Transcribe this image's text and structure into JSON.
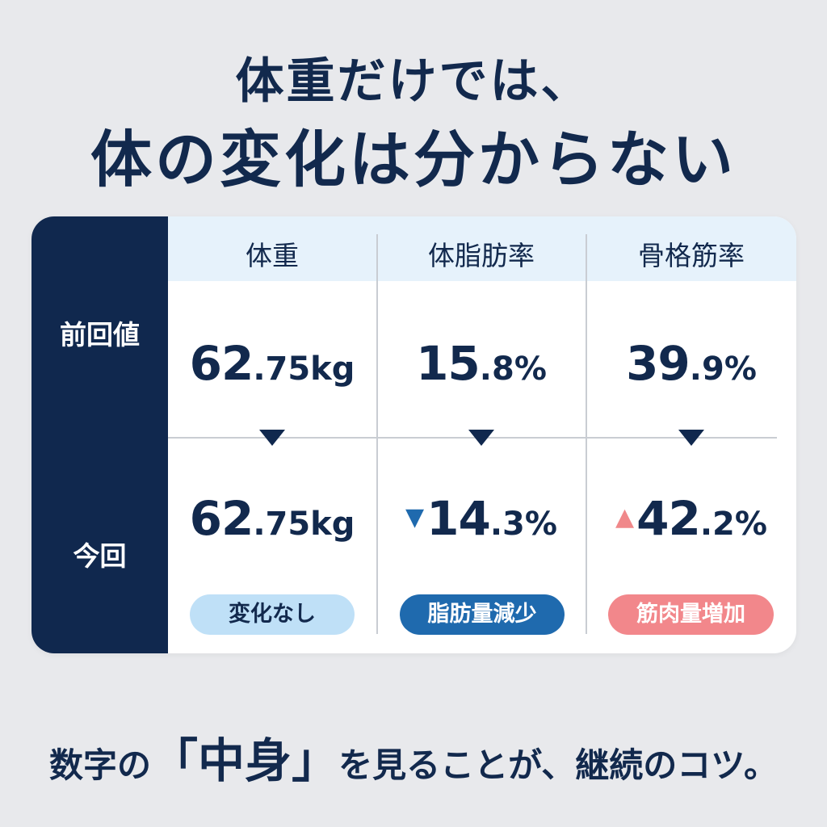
{
  "headline": {
    "line1": "体重だけでは、",
    "line2": "体の変化は分からない"
  },
  "table": {
    "row_headers": [
      "前回値",
      "今回"
    ],
    "columns": [
      {
        "label": "体重",
        "previous": {
          "int": "62",
          "frac": ".75kg"
        },
        "current": {
          "int": "62",
          "frac": ".75kg",
          "trend": ""
        },
        "badge": "変化なし"
      },
      {
        "label": "体脂肪率",
        "previous": {
          "int": "15",
          "frac": ".8%"
        },
        "current": {
          "int": "14",
          "frac": ".3%",
          "trend": "▼"
        },
        "badge": "脂肪量減少"
      },
      {
        "label": "骨格筋率",
        "previous": {
          "int": "39",
          "frac": ".9%"
        },
        "current": {
          "int": "42",
          "frac": ".2%",
          "trend": "▲"
        },
        "badge": "筋肉量増加"
      }
    ]
  },
  "footer": {
    "before": "数字の",
    "open_bracket": "「",
    "emphasis": "中身",
    "close_bracket": "」",
    "after": "を見ることが、継続のコツ。"
  },
  "colors": {
    "navy": "#10284e",
    "light_blue": "#bfe0f7",
    "blue": "#1f6aae",
    "pink": "#f2878b",
    "background": "#e8e9ec"
  }
}
